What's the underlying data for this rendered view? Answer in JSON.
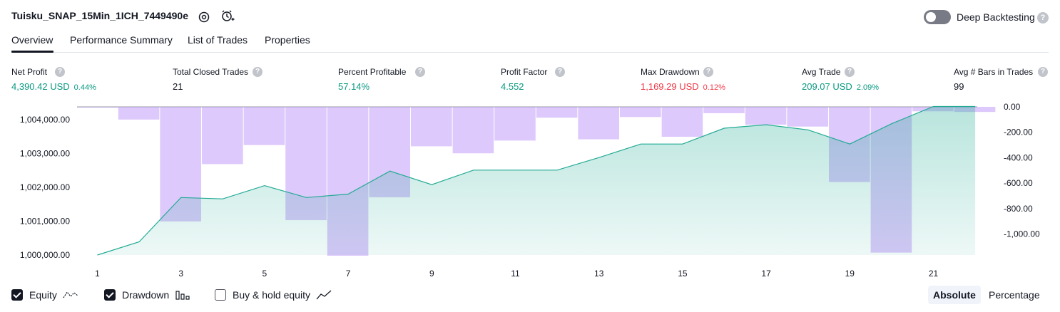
{
  "header": {
    "title": "Tuisku_SNAP_15Min_1ICH_7449490e",
    "settings_icon": "gear-icon",
    "alert_icon": "add-alert-icon",
    "deep_backtesting_label": "Deep Backtesting",
    "deep_backtesting_on": false
  },
  "tabs": [
    {
      "label": "Overview",
      "active": true
    },
    {
      "label": "Performance Summary",
      "active": false
    },
    {
      "label": "List of Trades",
      "active": false
    },
    {
      "label": "Properties",
      "active": false
    }
  ],
  "metrics": [
    {
      "label": "Net Profit",
      "value": "4,390.42 USD",
      "pct": "0.44%",
      "color": "#089981"
    },
    {
      "label": "Total Closed Trades",
      "value": "21",
      "pct": "",
      "color": "#131722"
    },
    {
      "label": "Percent Profitable",
      "value": "57.14%",
      "pct": "",
      "color": "#089981"
    },
    {
      "label": "Profit Factor",
      "value": "4.552",
      "pct": "",
      "color": "#089981"
    },
    {
      "label": "Max Drawdown",
      "value": "1,169.29 USD",
      "pct": "0.12%",
      "color": "#f23645"
    },
    {
      "label": "Avg Trade",
      "value": "209.07 USD",
      "pct": "2.09%",
      "color": "#089981"
    },
    {
      "label": "Avg # Bars in Trades",
      "value": "99",
      "pct": "",
      "color": "#131722"
    }
  ],
  "legend": {
    "equity_label": "Equity",
    "equity_checked": true,
    "drawdown_label": "Drawdown",
    "drawdown_checked": true,
    "buyhold_label": "Buy & hold equity",
    "buyhold_checked": false,
    "absolute_label": "Absolute",
    "percentage_label": "Percentage",
    "mode": "Absolute"
  },
  "chart_data": {
    "type": "line+bar",
    "x_tick_labels": [
      "1",
      "3",
      "5",
      "7",
      "9",
      "11",
      "13",
      "15",
      "17",
      "19",
      "21"
    ],
    "left_axis": {
      "ticks": [
        "1,000,000.00",
        "1,001,000.00",
        "1,002,000.00",
        "1,003,000.00",
        "1,004,000.00"
      ],
      "range": [
        1000000,
        1004000
      ]
    },
    "right_axis": {
      "ticks": [
        "0.00",
        "-200.00",
        "-400.00",
        "-600.00",
        "-800.00",
        "-1,000.00"
      ],
      "range": [
        -1169.29,
        0
      ]
    },
    "equity": {
      "x": [
        1,
        2,
        3,
        4,
        5,
        6,
        7,
        8,
        9,
        10,
        11,
        12,
        13,
        14,
        15,
        16,
        17,
        18,
        19,
        20,
        21,
        22
      ],
      "values": [
        1000000,
        1000390,
        1001700,
        1001660,
        1002050,
        1001700,
        1001800,
        1002480,
        1002080,
        1002510,
        1002510,
        1002510,
        1002880,
        1003280,
        1003280,
        1003750,
        1003850,
        1003700,
        1003280,
        1003880,
        1004390,
        1004390
      ]
    },
    "drawdown": {
      "x": [
        1,
        2,
        3,
        4,
        5,
        6,
        7,
        8,
        9,
        10,
        11,
        12,
        13,
        14,
        15,
        16,
        17,
        18,
        19,
        20,
        21,
        22
      ],
      "values": [
        -5,
        -100,
        -900,
        -450,
        -300,
        -890,
        -1169.29,
        -710,
        -310,
        -365,
        -265,
        -85,
        -255,
        -80,
        -235,
        -50,
        -140,
        -155,
        -590,
        -1145,
        -35,
        -40
      ]
    }
  }
}
